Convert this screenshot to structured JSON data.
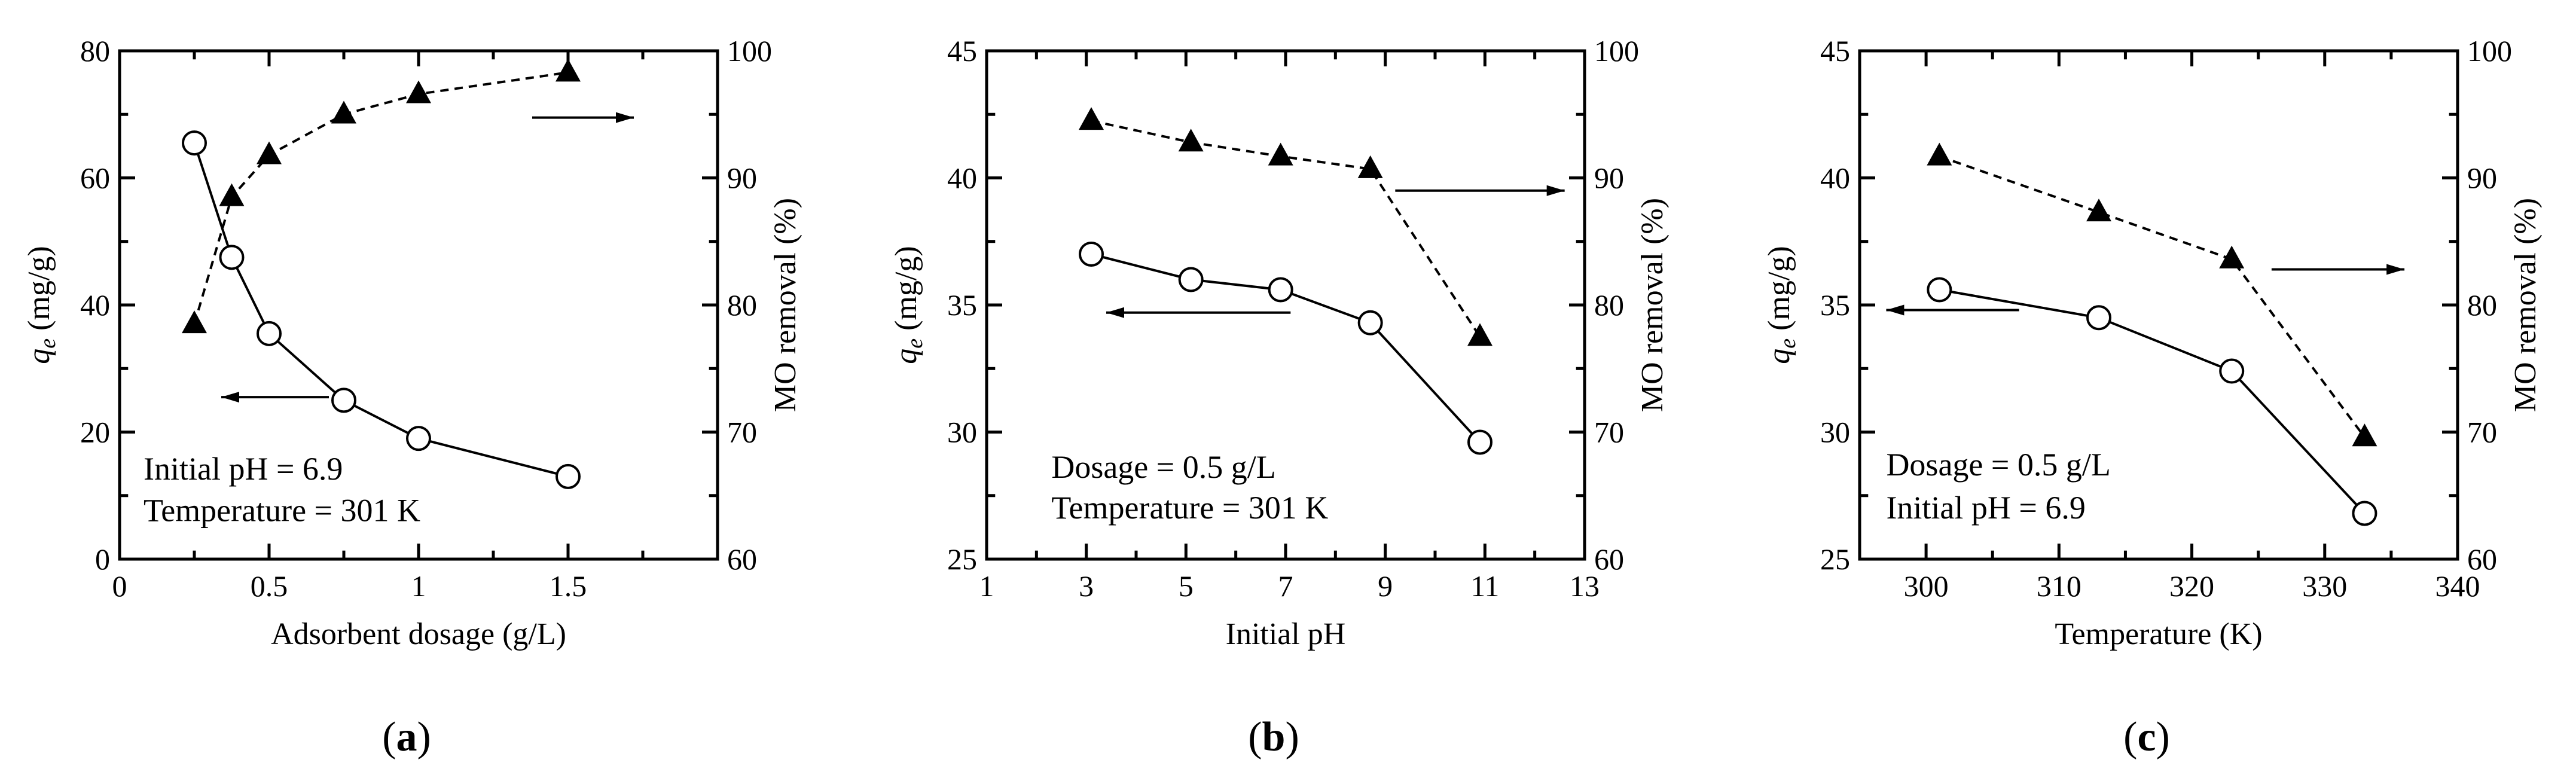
{
  "chart_data": [
    {
      "type": "line",
      "panel": "a",
      "xlabel": "Adsorbent dosage (g/L)",
      "ylabel_left_italic": "q",
      "ylabel_left_sub": "e",
      "ylabel_left_rest": " (mg/g)",
      "ylabel_right": "MO removal (%)",
      "xlim": [
        0,
        2
      ],
      "xticks": [
        0,
        0.5,
        1,
        1.5
      ],
      "xtick_labels": [
        "0",
        "0.5",
        "1",
        "1.5"
      ],
      "ylim_left": [
        0,
        80
      ],
      "yticks_left": [
        0,
        20,
        40,
        60,
        80
      ],
      "ytick_labels_left": [
        "0",
        "20",
        "40",
        "60",
        "80"
      ],
      "ylim_right": [
        60,
        100
      ],
      "yticks_right": [
        60,
        70,
        80,
        90,
        100
      ],
      "ytick_labels_right": [
        "60",
        "70",
        "80",
        "90",
        "100"
      ],
      "series": [
        {
          "name": "qe",
          "axis": "left",
          "style": "solid",
          "marker": "open-circle",
          "x": [
            0.25,
            0.375,
            0.5,
            0.75,
            1.0,
            1.5
          ],
          "values": [
            65.5,
            47.5,
            35.5,
            25.0,
            19.0,
            13.0
          ]
        },
        {
          "name": "MO removal",
          "axis": "right",
          "style": "dashed",
          "marker": "filled-triangle",
          "x": [
            0.25,
            0.375,
            0.5,
            0.75,
            1.0,
            1.5
          ],
          "values": [
            78.5,
            88.5,
            91.8,
            95.0,
            96.6,
            98.3
          ]
        }
      ],
      "arrows": [
        {
          "direction": "left",
          "axis": "left",
          "x1": 0.34,
          "x2": 0.7,
          "y": 25.5
        },
        {
          "direction": "right",
          "axis": "left",
          "x1": 1.38,
          "x2": 1.72,
          "y": 69.5
        }
      ],
      "annotations": [
        {
          "text": "Initial pH = 6.9",
          "x": 0.08,
          "y": 12.5
        },
        {
          "text": "Temperature = 301 K",
          "x": 0.08,
          "y": 6.0
        }
      ],
      "label": "a"
    },
    {
      "type": "line",
      "panel": "b",
      "xlabel": "Initial pH",
      "ylabel_left_italic": "q",
      "ylabel_left_sub": "e",
      "ylabel_left_rest": " (mg/g)",
      "ylabel_right": "MO removal (%)",
      "xlim": [
        1,
        13
      ],
      "xticks": [
        1,
        3,
        5,
        7,
        9,
        11,
        13
      ],
      "xtick_labels": [
        "1",
        "3",
        "5",
        "7",
        "9",
        "11",
        "13"
      ],
      "ylim_left": [
        25,
        45
      ],
      "yticks_left": [
        25,
        30,
        35,
        40,
        45
      ],
      "ytick_labels_left": [
        "25",
        "30",
        "35",
        "40",
        "45"
      ],
      "ylim_right": [
        60,
        100
      ],
      "yticks_right": [
        60,
        70,
        80,
        90,
        100
      ],
      "ytick_labels_right": [
        "60",
        "70",
        "80",
        "90",
        "100"
      ],
      "series": [
        {
          "name": "qe",
          "axis": "left",
          "style": "solid",
          "marker": "open-circle",
          "x": [
            3.1,
            5.1,
            6.9,
            8.7,
            10.9
          ],
          "values": [
            37.0,
            36.0,
            35.6,
            34.3,
            29.6
          ]
        },
        {
          "name": "MO removal",
          "axis": "right",
          "style": "dashed",
          "marker": "filled-triangle",
          "x": [
            3.1,
            5.1,
            6.9,
            8.7,
            10.9
          ],
          "values": [
            94.5,
            92.8,
            91.7,
            90.7,
            77.5
          ]
        }
      ],
      "arrows": [
        {
          "direction": "left",
          "axis": "left",
          "x1": 3.4,
          "x2": 7.1,
          "y": 34.7
        },
        {
          "direction": "right",
          "axis": "left",
          "x1": 9.2,
          "x2": 12.6,
          "y": 39.5
        }
      ],
      "annotations": [
        {
          "text": "Dosage = 0.5 g/L",
          "x": 2.3,
          "y": 28.2
        },
        {
          "text": "Temperature = 301 K",
          "x": 2.3,
          "y": 26.6
        }
      ],
      "label": "b"
    },
    {
      "type": "line",
      "panel": "c",
      "xlabel": "Temperature (K)",
      "ylabel_left_italic": "q",
      "ylabel_left_sub": "e",
      "ylabel_left_rest": " (mg/g)",
      "ylabel_right": "MO removal (%)",
      "xlim": [
        295,
        340
      ],
      "xticks": [
        300,
        310,
        320,
        330,
        340
      ],
      "xtick_labels": [
        "300",
        "310",
        "320",
        "330",
        "340"
      ],
      "ylim_left": [
        25,
        45
      ],
      "yticks_left": [
        25,
        30,
        35,
        40,
        45
      ],
      "ytick_labels_left": [
        "25",
        "30",
        "35",
        "40",
        "45"
      ],
      "ylim_right": [
        60,
        100
      ],
      "yticks_right": [
        60,
        70,
        80,
        90,
        100
      ],
      "ytick_labels_right": [
        "60",
        "70",
        "80",
        "90",
        "100"
      ],
      "series": [
        {
          "name": "qe",
          "axis": "left",
          "style": "solid",
          "marker": "open-circle",
          "x": [
            301,
            313,
            323,
            333
          ],
          "values": [
            35.6,
            34.5,
            32.4,
            26.8
          ]
        },
        {
          "name": "MO removal",
          "axis": "right",
          "style": "dashed",
          "marker": "filled-triangle",
          "x": [
            301,
            313,
            323,
            333
          ],
          "values": [
            91.7,
            87.3,
            83.6,
            69.6
          ]
        }
      ],
      "arrows": [
        {
          "direction": "left",
          "axis": "left",
          "x1": 297,
          "x2": 307,
          "y": 34.8
        },
        {
          "direction": "right",
          "axis": "left",
          "x1": 326,
          "x2": 336,
          "y": 36.4
        }
      ],
      "annotations": [
        {
          "text": "Dosage = 0.5 g/L",
          "x": 297,
          "y": 28.3
        },
        {
          "text": "Initial pH = 6.9",
          "x": 297,
          "y": 26.6
        }
      ],
      "label": "c"
    }
  ]
}
